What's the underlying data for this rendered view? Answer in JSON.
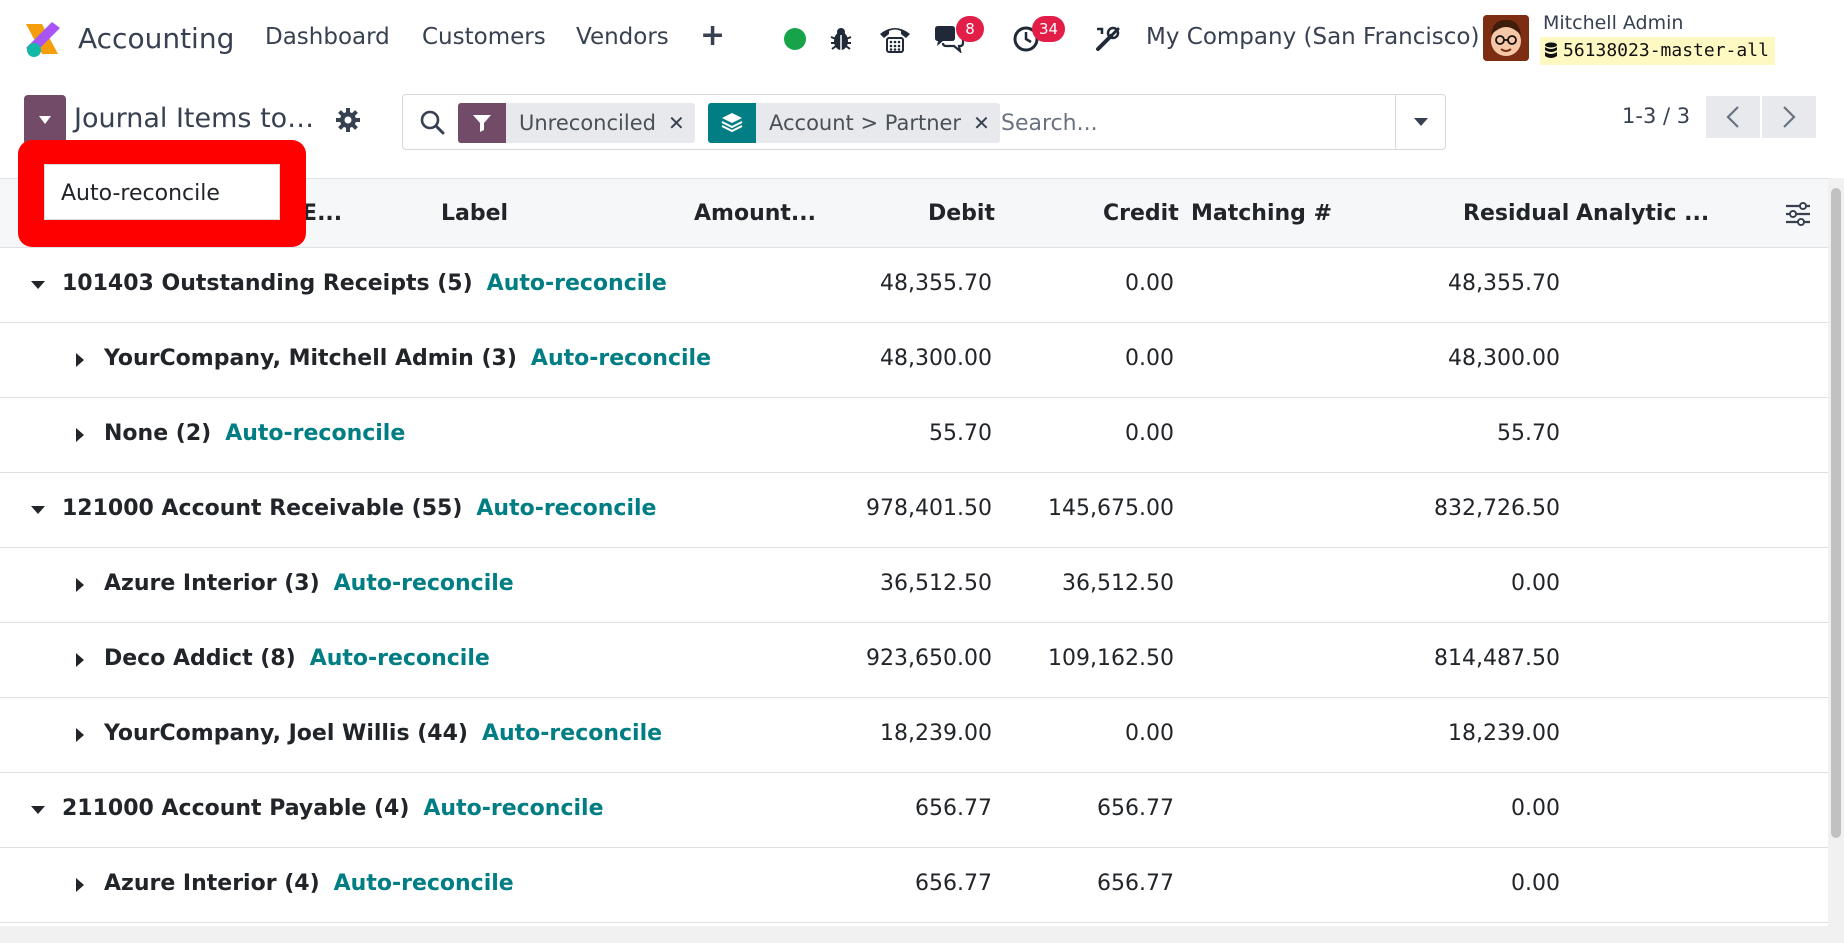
{
  "app": {
    "name": "Accounting"
  },
  "nav": {
    "menus": [
      "Dashboard",
      "Customers",
      "Vendors"
    ],
    "chat_count": "8",
    "activity_count": "34",
    "company": "My Company (San Francisco)",
    "user_name": "Mitchell Admin",
    "database": "56138023-master-all"
  },
  "control": {
    "breadcrumb": "Journal Items to…",
    "facets": [
      {
        "label": "Unreconciled",
        "icon": "filter-icon",
        "color": "#714b67"
      },
      {
        "label": "Account > Partner",
        "icon": "layers-icon",
        "color": "#017e84"
      }
    ],
    "search_placeholder": "Search...",
    "pager": "1-3 / 3"
  },
  "dropdown": {
    "item": "Auto-reconcile"
  },
  "table": {
    "headers": {
      "journal_entry": "al E...",
      "label": "Label",
      "amount": "Amount...",
      "debit": "Debit",
      "credit": "Credit",
      "matching": "Matching #",
      "residual": "Residual",
      "analytic": "Analytic ..."
    },
    "action_label": "Auto-reconcile",
    "rows": [
      {
        "level": 0,
        "open": true,
        "name": "101403 Outstanding Receipts (5)",
        "debit": "48,355.70",
        "credit": "0.00",
        "residual": "48,355.70"
      },
      {
        "level": 1,
        "open": false,
        "name": "YourCompany, Mitchell Admin (3)",
        "debit": "48,300.00",
        "credit": "0.00",
        "residual": "48,300.00"
      },
      {
        "level": 1,
        "open": false,
        "name": "None (2)",
        "debit": "55.70",
        "credit": "0.00",
        "residual": "55.70"
      },
      {
        "level": 0,
        "open": true,
        "name": "121000 Account Receivable (55)",
        "debit": "978,401.50",
        "credit": "145,675.00",
        "residual": "832,726.50"
      },
      {
        "level": 1,
        "open": false,
        "name": "Azure Interior (3)",
        "debit": "36,512.50",
        "credit": "36,512.50",
        "residual": "0.00"
      },
      {
        "level": 1,
        "open": false,
        "name": "Deco Addict (8)",
        "debit": "923,650.00",
        "credit": "109,162.50",
        "residual": "814,487.50"
      },
      {
        "level": 1,
        "open": false,
        "name": "YourCompany, Joel Willis (44)",
        "debit": "18,239.00",
        "credit": "0.00",
        "residual": "18,239.00"
      },
      {
        "level": 0,
        "open": true,
        "name": "211000 Account Payable (4)",
        "debit": "656.77",
        "credit": "656.77",
        "residual": "0.00"
      },
      {
        "level": 1,
        "open": false,
        "name": "Azure Interior (4)",
        "debit": "656.77",
        "credit": "656.77",
        "residual": "0.00"
      }
    ]
  },
  "colors": {
    "primary": "#714b67",
    "teal": "#017e84",
    "badge": "#e11d48",
    "highlight": "#ff0000"
  }
}
